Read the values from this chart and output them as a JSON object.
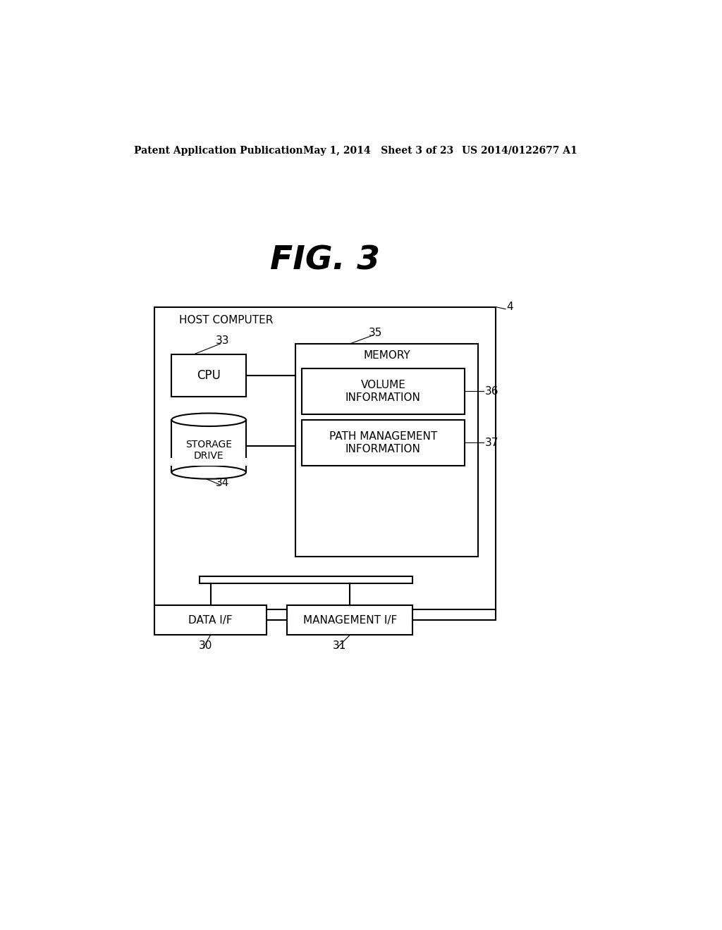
{
  "background_color": "#ffffff",
  "header_left": "Patent Application Publication",
  "header_mid": "May 1, 2014   Sheet 3 of 23",
  "header_right": "US 2014/0122677 A1",
  "fig_title": "FIG. 3",
  "host_computer_label": "HOST COMPUTER",
  "host_ref": "4",
  "cpu_label": "CPU",
  "cpu_ref": "33",
  "storage_label": "STORAGE\nDRIVE",
  "storage_ref": "34",
  "memory_label": "MEMORY",
  "memory_ref": "35",
  "vol_info_label": "VOLUME\nINFORMATION",
  "vol_info_ref": "36",
  "path_mgmt_label": "PATH MANAGEMENT\nINFORMATION",
  "path_mgmt_ref": "37",
  "data_if_label": "DATA I/F",
  "data_if_ref": "30",
  "mgmt_if_label": "MANAGEMENT I/F",
  "mgmt_if_ref": "31"
}
